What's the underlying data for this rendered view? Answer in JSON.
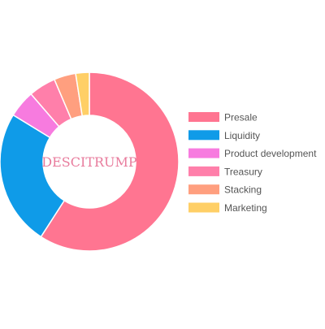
{
  "chart_data": {
    "type": "pie",
    "variant": "doughnut",
    "center_text": "DESCITRUMP",
    "legend_position": "right",
    "slices": [
      {
        "label": "Presale",
        "value": 60,
        "color": "#ff7591"
      },
      {
        "label": "Liquidity",
        "value": 25,
        "color": "#0f9be8"
      },
      {
        "label": "Product development",
        "value": 5,
        "color": "#f77bdf"
      },
      {
        "label": "Treasury",
        "value": 5,
        "color": "#ff7faa"
      },
      {
        "label": "Stacking",
        "value": 4,
        "color": "#ff9f7f"
      },
      {
        "label": "Marketing",
        "value": 2.5,
        "color": "#ffcf66"
      }
    ],
    "center_text_color": "#e87b9c",
    "legend_text_color": "#555555"
  }
}
